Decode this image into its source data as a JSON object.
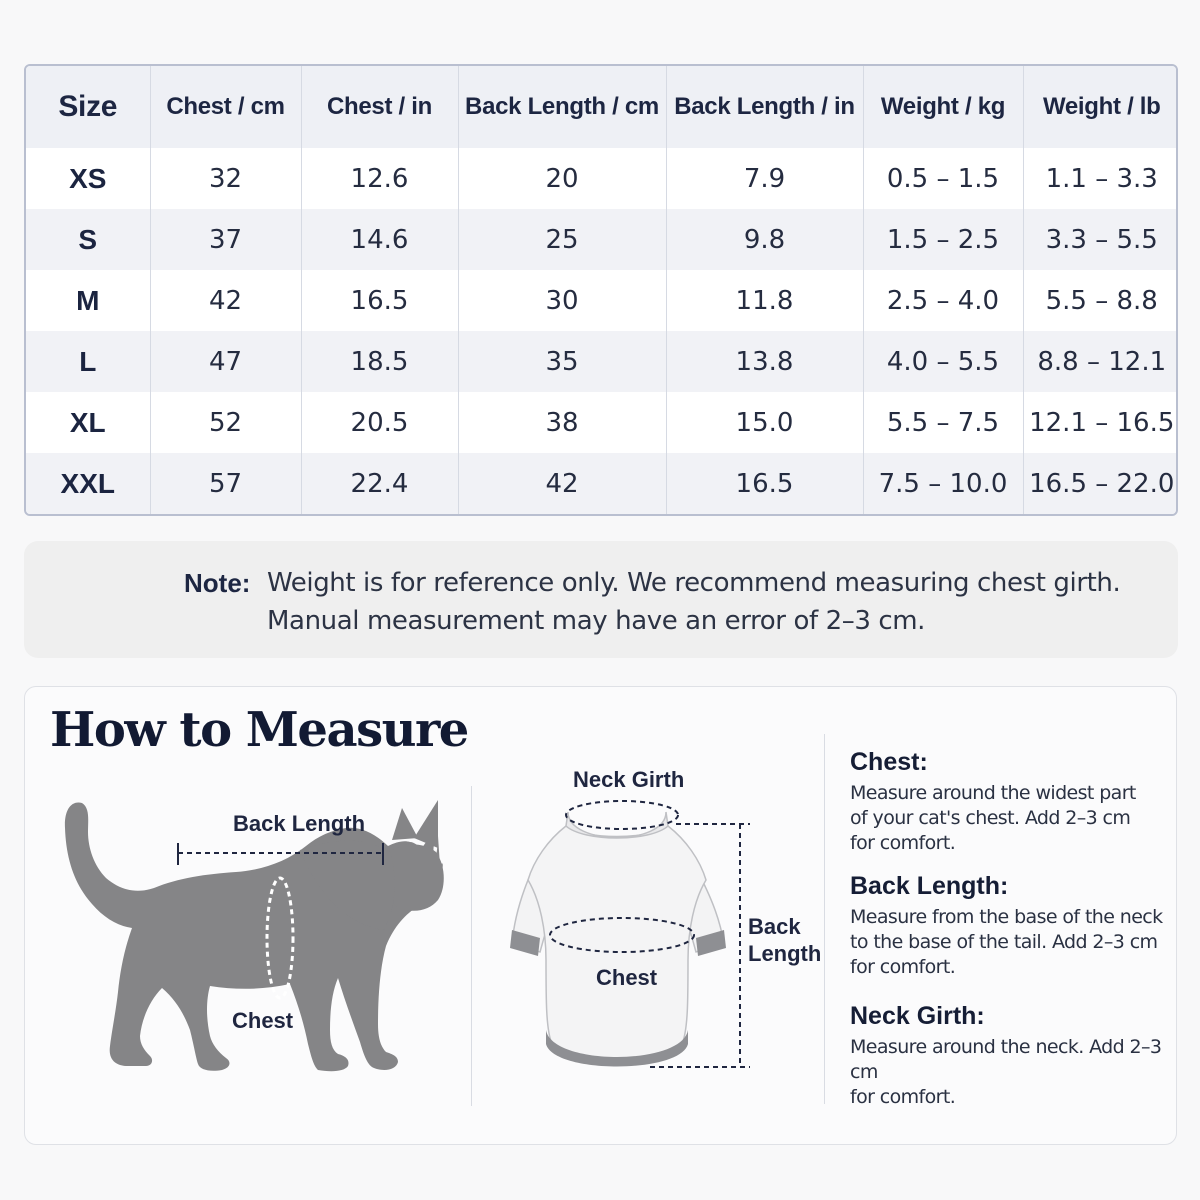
{
  "size_table": {
    "headers": [
      "Size",
      "Chest / cm",
      "Chest / in",
      "Back Length / cm",
      "Back Length / in",
      "Weight / kg",
      "Weight / lb"
    ],
    "rows": [
      [
        "XS",
        "32",
        "12.6",
        "20",
        "7.9",
        "0.5 – 1.5",
        "1.1 – 3.3"
      ],
      [
        "S",
        "37",
        "14.6",
        "25",
        "9.8",
        "1.5 – 2.5",
        "3.3 – 5.5"
      ],
      [
        "M",
        "42",
        "16.5",
        "30",
        "11.8",
        "2.5 – 4.0",
        "5.5 – 8.8"
      ],
      [
        "L",
        "47",
        "18.5",
        "35",
        "13.8",
        "4.0 – 5.5",
        "8.8 – 12.1"
      ],
      [
        "XL",
        "52",
        "20.5",
        "38",
        "15.0",
        "5.5 – 7.5",
        "12.1 – 16.5"
      ],
      [
        "XXL",
        "57",
        "22.4",
        "42",
        "16.5",
        "7.5 – 10.0",
        "16.5 – 22.0"
      ]
    ]
  },
  "note": {
    "label": "Note:",
    "line1": "Weight is for reference only. We recommend measuring chest girth.",
    "line2": "Manual measurement may have an error of 2–3 cm."
  },
  "measure": {
    "title": "How to Measure",
    "cat_labels": {
      "back_length": "Back Length",
      "chest": "Chest"
    },
    "garment_labels": {
      "neck_girth": "Neck Girth",
      "chest": "Chest",
      "back": "Back",
      "length": "Length"
    },
    "instructions": [
      {
        "title": "Chest:",
        "lines": [
          "Measure around the widest part",
          "of your cat's chest. Add 2–3 cm",
          "for comfort."
        ]
      },
      {
        "title": "Back Length:",
        "lines": [
          "Measure from the base of the neck",
          "to the base of the tail. Add 2–3 cm",
          "for comfort."
        ]
      },
      {
        "title": "Neck Girth:",
        "lines": [
          "Measure around the neck. Add 2–3 cm",
          "for comfort."
        ]
      }
    ]
  },
  "colors": {
    "cat_fill": "#858587",
    "garment_trim": "#8e8f93",
    "text_dark": "#1c2540"
  }
}
